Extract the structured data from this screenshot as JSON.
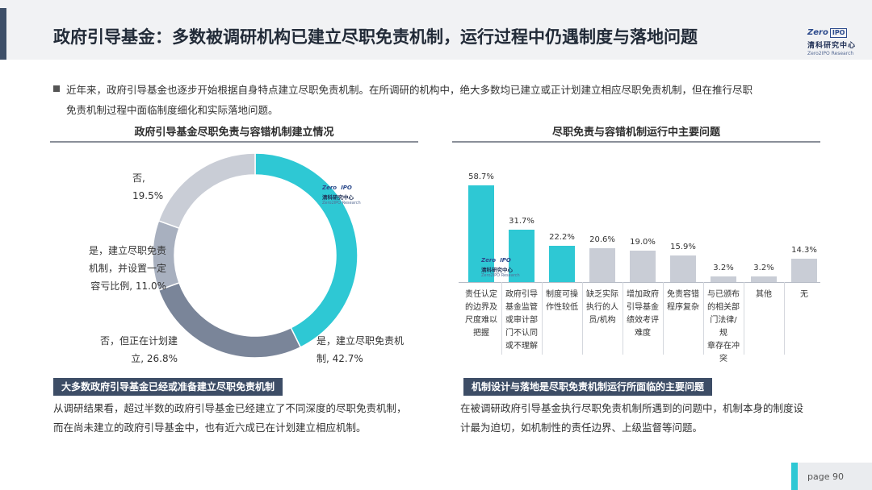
{
  "header": {
    "title": "政府引导基金：多数被调研机构已建立尽职免责机制，运行过程中仍遇制度与落地问题",
    "logo": {
      "zero": "Zero",
      "ipo": "IPO",
      "cn": "清科研究中心",
      "en": "Zero2IPO Research"
    }
  },
  "intro": {
    "line1": "近年来，政府引导基金也逐步开始根据自身特点建立尽职免责机制。在所调研的机构中，绝大多数均已建立或正计划建立相应尽职免责机制，但在推行尽职",
    "line2": "免责机制过程中面临制度细化和实际落地问题。"
  },
  "left_section": {
    "title": "政府引导基金尽职免责与容错机制建立情况",
    "caption": "大多数政府引导基金已经或准备建立尽职免责机制",
    "summary_line1": "从调研结果看，超过半数的政府引导基金已经建立了不同深度的尽职免责机制，",
    "summary_line2": "而在尚未建立的政府引导基金中，也有近六成已在计划建立相应机制。",
    "labels": [
      {
        "line1": "是，建立尽职免责机",
        "line2": "制, 42.7%"
      },
      {
        "line1": "否，但正在计划建",
        "line2": "立, 26.8%"
      },
      {
        "line1": "是，建立尽职免责",
        "line2": "机制，并设置一定",
        "line3": "容亏比例, 11.0%"
      },
      {
        "line1": "否,",
        "line2": "19.5%"
      }
    ]
  },
  "right_section": {
    "title": "尽职免责与容错机制运行中主要问题",
    "caption": "机制设计与落地是尽职免责机制运行所面临的主要问题",
    "summary_line1": "在被调研政府引导基金执行尽职免责机制所遇到的问题中，机制本身的制度设",
    "summary_line2": "计最为迫切，如机制性的责任边界、上级监督等问题。"
  },
  "watermark": {
    "zero": "Zero",
    "ipo": "IPO",
    "cn": "清科研究中心",
    "en": "Zero2IPO Research"
  },
  "footer": {
    "page_label": "page  90"
  },
  "colors": {
    "teal": "#2ec8d4",
    "slate_dark": "#7a8599",
    "slate_mid": "#a8b0bf",
    "slate_light": "#c9cdd6",
    "header_dark": "#3d4d66"
  },
  "chart_data": [
    {
      "type": "pie",
      "donut": true,
      "title": "政府引导基金尽职免责与容错机制建立情况",
      "slices": [
        {
          "label": "是，建立尽职免责机制",
          "value": 42.7,
          "color": "#2ec8d4"
        },
        {
          "label": "否，但正在计划建立",
          "value": 26.8,
          "color": "#7a8599"
        },
        {
          "label": "是，建立尽职免责机制，并设置一定容亏比例",
          "value": 11.0,
          "color": "#a8b0bf"
        },
        {
          "label": "否",
          "value": 19.5,
          "color": "#c9cdd6"
        }
      ]
    },
    {
      "type": "bar",
      "title": "尽职免责与容错机制运行中主要问题",
      "ylim": [
        0,
        60
      ],
      "categories": [
        [
          "责任认定",
          "的边界及",
          "尺度难以",
          "把握"
        ],
        [
          "政府引导",
          "基金监管",
          "或审计部",
          "门不认同",
          "或不理解"
        ],
        [
          "制度可操",
          "作性较低"
        ],
        [
          "缺乏实际",
          "执行的人",
          "员/机构"
        ],
        [
          "增加政府",
          "引导基金",
          "绩效考评",
          "难度"
        ],
        [
          "免责容错",
          "程序复杂"
        ],
        [
          "与已颁布",
          "的相关部",
          "门法律/规",
          "章存在冲",
          "突"
        ],
        [
          "其他"
        ],
        [
          "无"
        ]
      ],
      "values": [
        58.7,
        31.7,
        22.2,
        20.6,
        19.0,
        15.9,
        3.2,
        3.2,
        14.3
      ],
      "value_labels": [
        "58.7%",
        "31.7%",
        "22.2%",
        "20.6%",
        "19.0%",
        "15.9%",
        "3.2%",
        "3.2%",
        "14.3%"
      ],
      "bar_colors": [
        "#2ec8d4",
        "#2ec8d4",
        "#2ec8d4",
        "#c9cdd6",
        "#c9cdd6",
        "#c9cdd6",
        "#c9cdd6",
        "#c9cdd6",
        "#c9cdd6"
      ]
    }
  ]
}
